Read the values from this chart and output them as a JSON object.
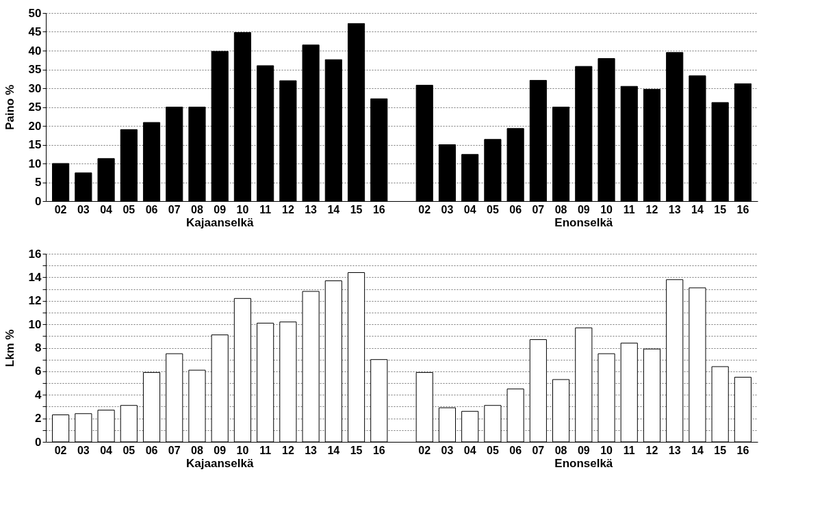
{
  "chart_data": [
    {
      "type": "bar",
      "ylabel": "Paino %",
      "categories": [
        "02",
        "03",
        "04",
        "05",
        "06",
        "07",
        "08",
        "09",
        "10",
        "11",
        "12",
        "13",
        "14",
        "15",
        "16",
        null,
        "02",
        "03",
        "04",
        "05",
        "06",
        "07",
        "08",
        "09",
        "10",
        "11",
        "12",
        "13",
        "14",
        "15",
        "16"
      ],
      "series": [
        {
          "color": "#000000",
          "values": [
            10,
            7.5,
            11.3,
            19,
            20.9,
            25,
            25,
            39.8,
            44.8,
            36,
            32,
            41.5,
            37.6,
            47.2,
            27.2,
            null,
            30.8,
            15,
            12.4,
            16.4,
            19.3,
            32.1,
            25,
            35.8,
            37.9,
            30.5,
            29.7,
            39.5,
            33.3,
            26.2,
            31.2
          ]
        }
      ],
      "ylim": [
        0,
        50
      ],
      "yticks": [
        0,
        5,
        10,
        15,
        20,
        25,
        30,
        35,
        40,
        45,
        50
      ],
      "grid": "y",
      "annotations": [
        "Kajaanselkä",
        "Enonselkä"
      ]
    },
    {
      "type": "bar",
      "ylabel": "Lkm %",
      "categories": [
        "02",
        "03",
        "04",
        "05",
        "06",
        "07",
        "08",
        "09",
        "10",
        "11",
        "12",
        "13",
        "14",
        "15",
        "16",
        null,
        "02",
        "03",
        "04",
        "05",
        "06",
        "07",
        "08",
        "09",
        "10",
        "11",
        "12",
        "13",
        "14",
        "15",
        "16"
      ],
      "series": [
        {
          "color": "#ffffff",
          "values": [
            2.3,
            2.4,
            2.7,
            3.1,
            5.9,
            7.5,
            6.1,
            9.1,
            12.2,
            10.1,
            10.2,
            12.8,
            13.7,
            14.4,
            7.0,
            null,
            5.9,
            2.9,
            2.6,
            3.1,
            4.5,
            8.7,
            5.3,
            9.7,
            7.5,
            8.4,
            7.9,
            13.8,
            13.1,
            6.4,
            5.5
          ]
        }
      ],
      "ylim": [
        0,
        16
      ],
      "yticks": [
        0,
        {
          "value": 1,
          "label": null
        },
        2,
        {
          "value": 3,
          "label": null
        },
        4,
        {
          "value": 5,
          "label": null
        },
        6,
        {
          "value": 7,
          "label": null
        },
        8,
        {
          "value": 9,
          "label": null
        },
        10,
        {
          "value": 11,
          "label": null
        },
        12,
        {
          "value": 13,
          "label": null
        },
        14,
        {
          "value": 15,
          "label": null
        },
        16
      ],
      "grid": "y",
      "annotations": [
        "Kajaanselkä",
        "Enonselkä"
      ]
    }
  ]
}
